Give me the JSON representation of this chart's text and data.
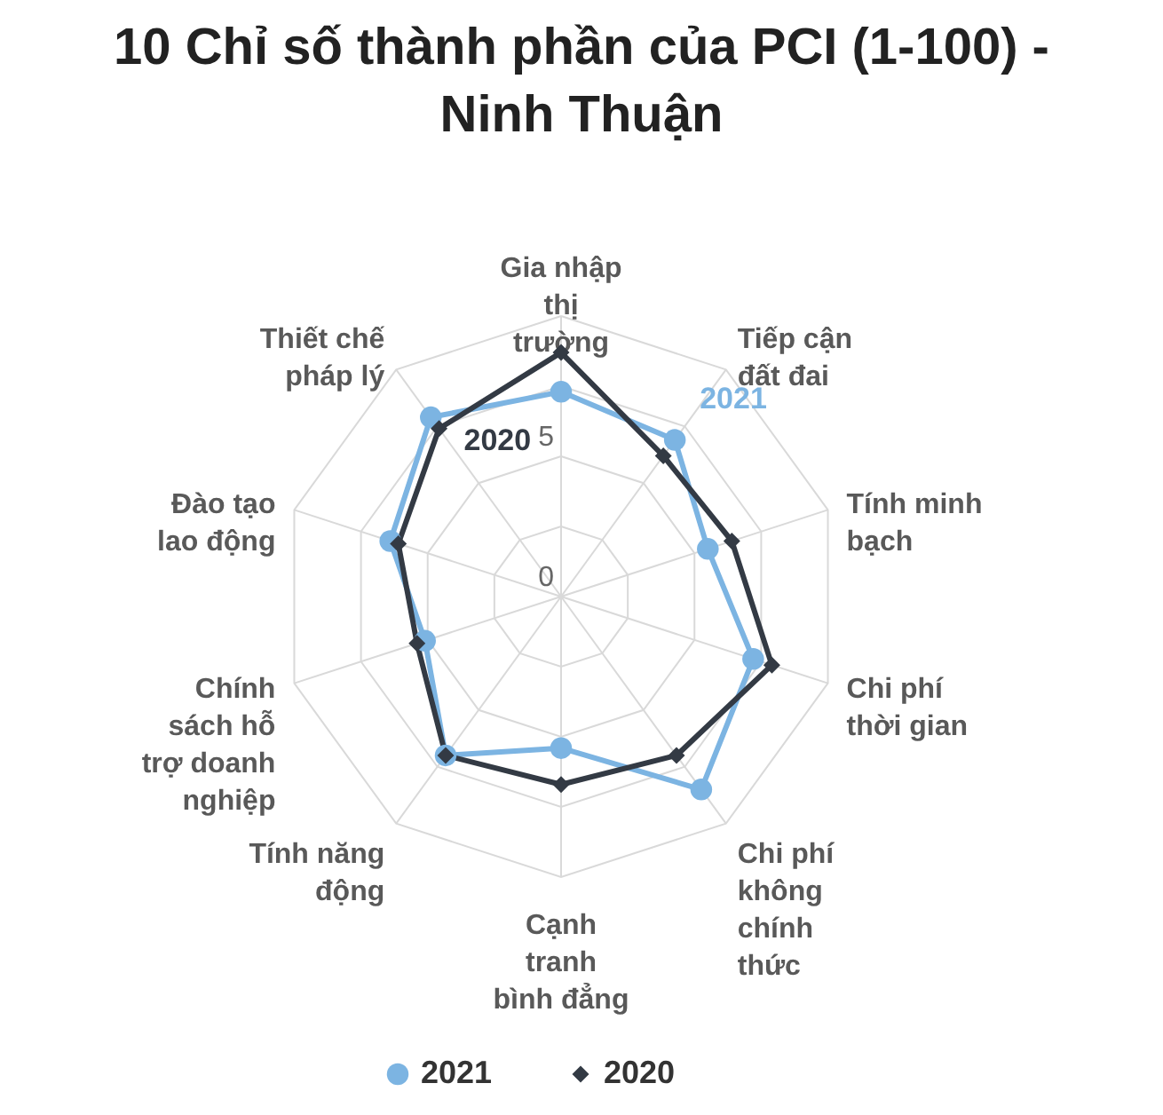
{
  "chart_data": {
    "type": "radar",
    "title": "10 Chỉ số thành phần của PCI (1-100) - Ninh Thuận",
    "categories": [
      "Gia nhập thị trường",
      "Tiếp cận đất đai",
      "Tính minh bạch",
      "Chi phí thời gian",
      "Chi phí không chính thức",
      "Cạnh tranh bình đẳng",
      "Tính năng động",
      "Chính sách hỗ trợ doanh nghiệp",
      "Đào tạo lao động",
      "Thiết chế pháp lý"
    ],
    "series": [
      {
        "name": "2021",
        "color": "#7cb4e2",
        "marker": "circle",
        "values": [
          7.3,
          6.9,
          5.5,
          7.2,
          8.5,
          5.4,
          7.0,
          5.1,
          6.4,
          7.9
        ]
      },
      {
        "name": "2020",
        "color": "#333a44",
        "marker": "diamond",
        "values": [
          8.7,
          6.2,
          6.4,
          7.9,
          7.0,
          6.7,
          7.0,
          5.4,
          6.1,
          7.4
        ]
      }
    ],
    "ylim": [
      0,
      10
    ],
    "yticks": [
      0,
      5
    ],
    "grid": true,
    "legend": "bottom",
    "line_style": "solid"
  }
}
